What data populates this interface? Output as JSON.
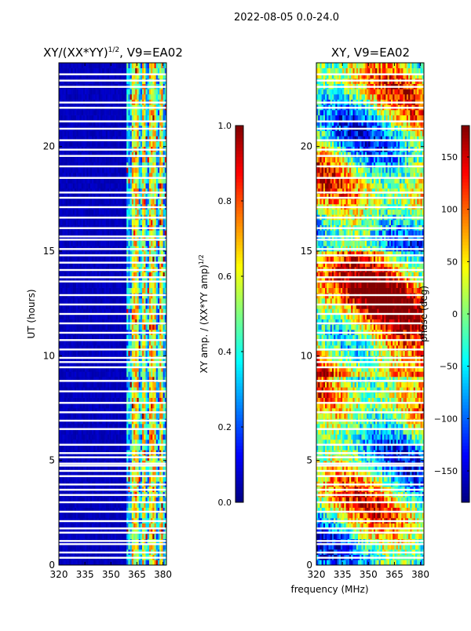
{
  "suptitle": "2022-08-05 0.0-24.0",
  "xlabel": "frequency (MHz)",
  "colors": {
    "background": "#ffffff",
    "axis": "#000000",
    "gap": "#ffffff"
  },
  "chart_data": [
    {
      "type": "heatmap",
      "title_main": "XY/(XX*YY)",
      "title_sup": "1/2",
      "title_tail": ", V9=EA02",
      "ylabel": "UT (hours)",
      "xlim": [
        320,
        382
      ],
      "ylim": [
        0,
        24
      ],
      "xticks": [
        320,
        335,
        350,
        365,
        380
      ],
      "yticks": [
        0,
        5,
        10,
        15,
        20
      ],
      "colorscale": "jet",
      "active_band_mhz": [
        359,
        382
      ],
      "hot_channels_mhz": [
        363,
        365,
        369,
        373,
        375,
        379
      ],
      "colorbar": {
        "label": "XY amp. / (XX*YY amp)",
        "label_sup": "1/2",
        "range": [
          0,
          1
        ],
        "ticks": [
          "0.0",
          "0.2",
          "0.4",
          "0.6",
          "0.8",
          "1.0"
        ]
      }
    },
    {
      "type": "heatmap",
      "title": "XY, V9=EA02",
      "xlim": [
        320,
        382
      ],
      "ylim": [
        0,
        24
      ],
      "xticks": [
        320,
        335,
        350,
        365,
        380
      ],
      "yticks": [
        0,
        5,
        10,
        15,
        20
      ],
      "colorscale": "jet",
      "colorbar": {
        "label": "phase (deg)",
        "range": [
          -180,
          180
        ],
        "ticks": [
          "−150",
          "−100",
          "−50",
          "0",
          "50",
          "100",
          "150"
        ]
      }
    }
  ],
  "gaps_ut_hours": [
    0.35,
    0.6,
    1.0,
    1.15,
    1.55,
    1.75,
    2.1,
    2.55,
    3.0,
    3.35,
    3.6,
    3.85,
    4.25,
    4.5,
    4.75,
    4.85,
    5.15,
    5.35,
    5.75,
    6.5,
    6.9,
    7.3,
    7.75,
    8.3,
    8.8,
    9.45,
    9.7,
    9.9,
    10.3,
    10.75,
    11.1,
    11.55,
    12.0,
    12.45,
    12.9,
    13.55,
    13.75,
    14.1,
    14.45,
    14.8,
    15.1,
    15.55,
    15.7,
    16.1,
    16.6,
    17.1,
    17.55,
    17.8,
    18.5,
    19.05,
    19.55,
    19.85,
    20.3,
    20.85,
    21.2,
    21.85,
    22.1,
    22.85,
    23.15,
    23.45
  ]
}
